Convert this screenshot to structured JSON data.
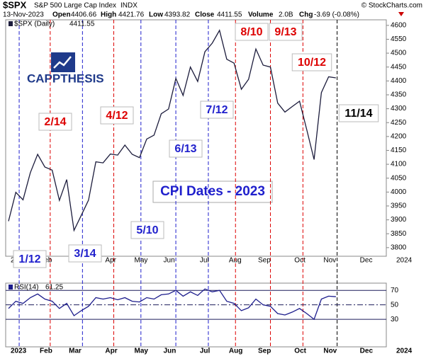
{
  "header": {
    "symbol": "$SPX",
    "name": "S&P 500 Large Cap Index",
    "exchange": "INDX",
    "source": "© StockCharts.com",
    "date": "13-Nov-2023",
    "open_label": "Open",
    "open": "4406.66",
    "high_label": "High",
    "high": "4421.76",
    "low_label": "Low",
    "low": "4393.82",
    "close_label": "Close",
    "close": "4411.55",
    "volume_label": "Volume",
    "volume": "2.0B",
    "chg_label": "Chg",
    "chg": "-3.69 (-0.08%)"
  },
  "logo": "CAPPTHESIS",
  "chart_data": [
    {
      "type": "line",
      "title": "CPI Dates - 2023",
      "legend_value": 4411.55,
      "categories": [
        "2023",
        null,
        null,
        null,
        "Feb",
        null,
        null,
        null,
        "Mar",
        null,
        null,
        null,
        null,
        "Apr",
        null,
        null,
        null,
        "May",
        null,
        null,
        null,
        "Jun",
        null,
        null,
        null,
        null,
        "Jul",
        null,
        null,
        null,
        "Aug",
        null,
        null,
        null,
        "Sep",
        null,
        null,
        null,
        null,
        "Oct",
        null,
        null,
        null,
        "Nov",
        null,
        null,
        null,
        null,
        "Dec",
        null,
        null,
        null,
        null,
        "2024"
      ],
      "series": [
        {
          "name": "$SPX (Daily)",
          "color": "#1c1c3c",
          "values": [
            3895,
            3999,
            3972,
            4070,
            4136,
            4090,
            4079,
            3970,
            4045,
            3862,
            3916,
            3971,
            4109,
            4105,
            4137,
            4133,
            4169,
            4136,
            4124,
            4191,
            4205,
            4282,
            4299,
            4409,
            4348,
            4450,
            4398,
            4505,
            4536,
            4582,
            4478,
            4464,
            4370,
            4406,
            4515,
            4457,
            4450,
            4320,
            4288,
            4308,
            4327,
            4224,
            4117,
            4358,
            4415,
            4411,
            null,
            null,
            null,
            null,
            null,
            null,
            null,
            null
          ]
        }
      ],
      "ylim": [
        3769,
        4620
      ],
      "yticks": [
        3800,
        3850,
        3900,
        3950,
        4000,
        4050,
        4100,
        4150,
        4200,
        4250,
        4300,
        4350,
        4400,
        4450,
        4500,
        4550,
        4600
      ],
      "annotations": [
        {
          "text": "1/12",
          "color": "#1f1fcc"
        },
        {
          "text": "2/14",
          "color": "#dd0000"
        },
        {
          "text": "3/14",
          "color": "#1f1fcc"
        },
        {
          "text": "4/12",
          "color": "#dd0000"
        },
        {
          "text": "5/10",
          "color": "#1f1fcc"
        },
        {
          "text": "6/13",
          "color": "#1f1fcc"
        },
        {
          "text": "7/12",
          "color": "#1f1fcc"
        },
        {
          "text": "8/10",
          "color": "#dd0000"
        },
        {
          "text": "9/13",
          "color": "#dd0000"
        },
        {
          "text": "10/12",
          "color": "#dd0000"
        },
        {
          "text": "11/14",
          "color": "#000000"
        }
      ]
    },
    {
      "type": "line",
      "legend_value": 61.25,
      "series": [
        {
          "name": "RSI(14)",
          "color": "#1c1c8c",
          "values": [
            45,
            55,
            52,
            60,
            65,
            58,
            55,
            45,
            52,
            35,
            42,
            48,
            60,
            58,
            60,
            57,
            60,
            55,
            54,
            60,
            58,
            64,
            65,
            70,
            62,
            68,
            63,
            72,
            68,
            70,
            55,
            52,
            42,
            46,
            58,
            50,
            48,
            38,
            36,
            40,
            45,
            38,
            30,
            58,
            62,
            61.25,
            null,
            null,
            null,
            null,
            null,
            null,
            null,
            null
          ]
        }
      ],
      "ylim": [
        -8,
        80
      ],
      "yticks": [
        30,
        50,
        70
      ]
    }
  ]
}
